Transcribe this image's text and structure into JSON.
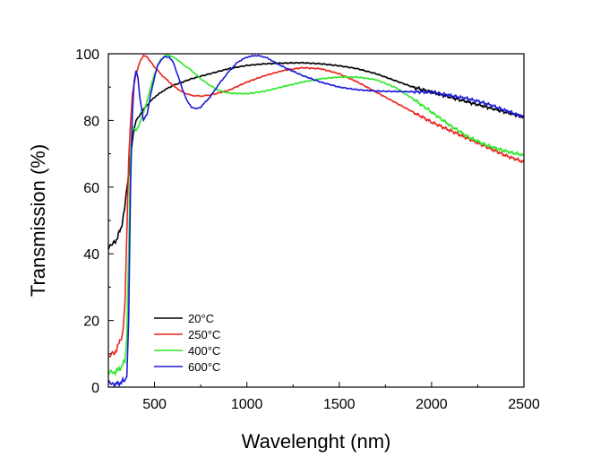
{
  "chart_data": {
    "type": "line",
    "xlabel": "Wavelenght (nm)",
    "ylabel": "Transmission (%)",
    "xlim": [
      250,
      2500
    ],
    "ylim": [
      0,
      100
    ],
    "xticks": [
      500,
      1000,
      1500,
      2000,
      2500
    ],
    "yticks": [
      0,
      20,
      40,
      60,
      80,
      100
    ],
    "xtick_labels": [
      "500",
      "1000",
      "1500",
      "2000",
      "2500"
    ],
    "ytick_labels": [
      "0",
      "20",
      "40",
      "60",
      "80",
      "100"
    ],
    "grid": false,
    "legend_position": "bottom-left",
    "series": [
      {
        "name": "20°C",
        "color": "#000000",
        "x": [
          250,
          280,
          300,
          320,
          340,
          355,
          370,
          385,
          400,
          450,
          500,
          550,
          600,
          700,
          800,
          900,
          1000,
          1100,
          1200,
          1300,
          1400,
          1500,
          1600,
          1700,
          1800,
          1900,
          2000,
          2100,
          2200,
          2300,
          2400,
          2500
        ],
        "y": [
          42,
          43,
          45,
          48,
          54,
          62,
          70,
          76,
          80,
          84,
          87,
          89,
          90.5,
          92.5,
          94,
          95.5,
          96.5,
          97,
          97.2,
          97.3,
          97,
          96.4,
          95.5,
          94,
          92,
          90,
          88.5,
          87,
          85.5,
          84,
          82.5,
          81
        ]
      },
      {
        "name": "250°C",
        "color": "#e8251f",
        "x": [
          250,
          280,
          300,
          320,
          330,
          340,
          350,
          360,
          370,
          380,
          400,
          420,
          440,
          460,
          480,
          500,
          550,
          600,
          650,
          700,
          750,
          800,
          900,
          1000,
          1100,
          1200,
          1300,
          1400,
          1500,
          1600,
          1700,
          1800,
          1900,
          2000,
          2100,
          2200,
          2300,
          2400,
          2500
        ],
        "y": [
          9,
          10,
          12,
          15,
          18,
          25,
          45,
          68,
          80,
          88,
          94,
          97.5,
          99.5,
          99,
          97.5,
          96,
          93,
          90.5,
          88.5,
          87.5,
          87.3,
          87.6,
          89,
          91.5,
          93.5,
          95,
          95.8,
          95.5,
          94,
          91.5,
          88.5,
          85.5,
          82.5,
          79.5,
          77,
          74.5,
          72,
          69.5,
          67.5
        ]
      },
      {
        "name": "400°C",
        "color": "#2ee82a",
        "x": [
          250,
          280,
          300,
          320,
          340,
          350,
          360,
          370,
          380,
          400,
          420,
          450,
          480,
          500,
          530,
          560,
          580,
          600,
          630,
          650,
          700,
          750,
          800,
          850,
          900,
          1000,
          1100,
          1200,
          1300,
          1400,
          1500,
          1600,
          1700,
          1800,
          1900,
          2000,
          2100,
          2200,
          2300,
          2400,
          2500
        ],
        "y": [
          4,
          4.5,
          5,
          6,
          8,
          15,
          40,
          70,
          78,
          77,
          79,
          84,
          90,
          94,
          98,
          99.5,
          99.5,
          99,
          98,
          97,
          95,
          92.5,
          90.5,
          89,
          88.2,
          88,
          88.8,
          90.2,
          91.5,
          92.5,
          93,
          93,
          92.2,
          90,
          86.5,
          82.5,
          78.5,
          75,
          72.5,
          70.8,
          69.5
        ]
      },
      {
        "name": "600°C",
        "color": "#1a1ad6",
        "x": [
          250,
          280,
          300,
          320,
          340,
          350,
          360,
          370,
          380,
          390,
          400,
          410,
          420,
          440,
          460,
          480,
          500,
          520,
          550,
          580,
          600,
          630,
          650,
          680,
          700,
          730,
          750,
          800,
          850,
          900,
          950,
          1000,
          1050,
          1100,
          1150,
          1200,
          1300,
          1400,
          1500,
          1600,
          1700,
          1800,
          1900,
          2000,
          2100,
          2200,
          2300,
          2400,
          2500
        ],
        "y": [
          1,
          1,
          1,
          1.5,
          2,
          3,
          20,
          60,
          82,
          92,
          95,
          93,
          87,
          80,
          82,
          88,
          93,
          97,
          99,
          99,
          97.5,
          93,
          89.5,
          85.5,
          84,
          83.5,
          84,
          87,
          91,
          94.5,
          97.5,
          99,
          99.5,
          99,
          97.5,
          96,
          93.5,
          91.5,
          90,
          89.2,
          88.8,
          88.7,
          88.6,
          88.5,
          87.5,
          86.5,
          85,
          83,
          81
        ]
      }
    ]
  }
}
